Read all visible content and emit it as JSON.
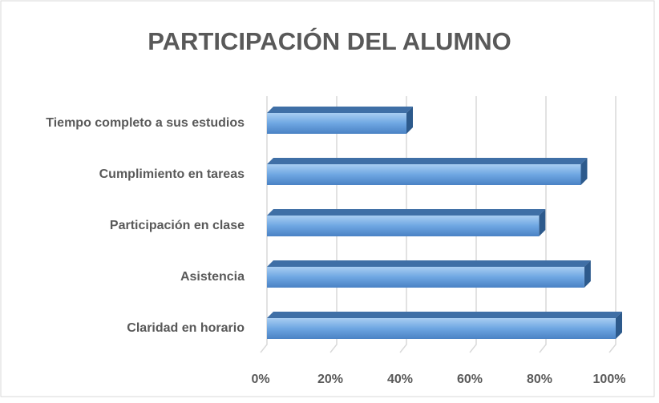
{
  "chart_data": {
    "type": "bar",
    "orientation": "horizontal",
    "title": "PARTICIPACIÓN DEL ALUMNO",
    "categories": [
      "Tiempo completo a sus estudios",
      "Cumplimiento en tareas",
      "Participación en clase",
      "Asistencia",
      "Claridad en horario"
    ],
    "values": [
      40,
      90,
      78,
      91,
      100
    ],
    "color": "#5b9bd5",
    "xlim": [
      0,
      100
    ],
    "xticks": [
      {
        "value": 0,
        "label": "0%"
      },
      {
        "value": 20,
        "label": "20%"
      },
      {
        "value": 40,
        "label": "40%"
      },
      {
        "value": 60,
        "label": "60%"
      },
      {
        "value": 80,
        "label": "80%"
      },
      {
        "value": 100,
        "label": "100%"
      }
    ],
    "grid": true
  }
}
